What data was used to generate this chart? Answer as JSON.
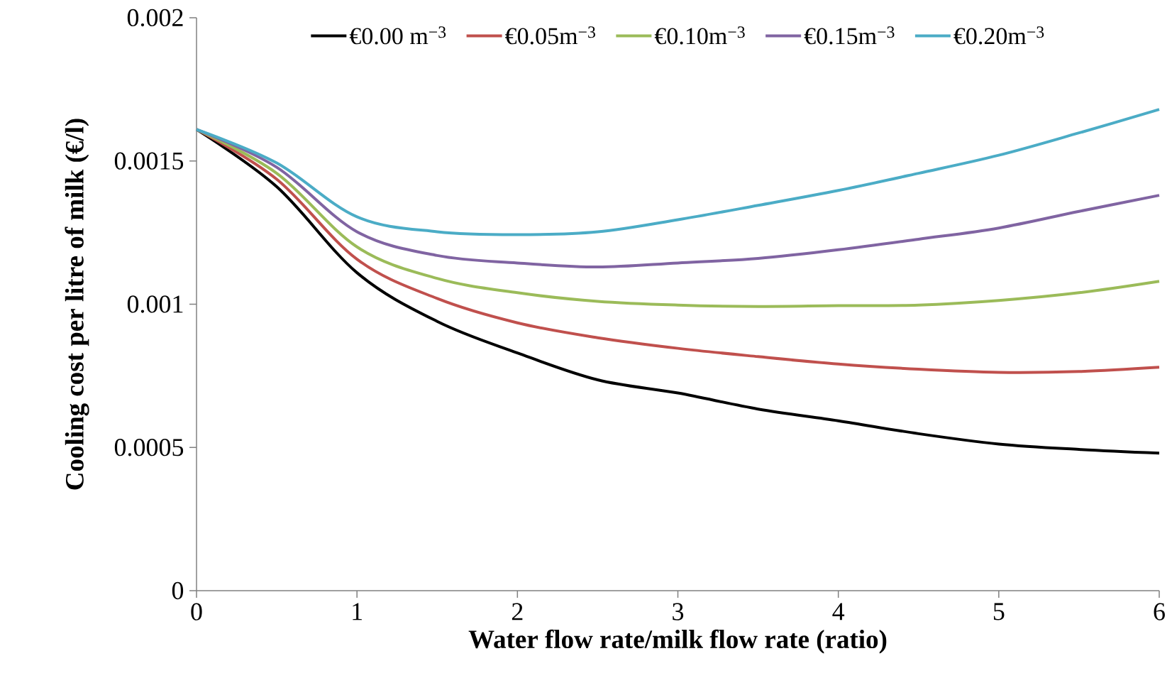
{
  "chart_data": {
    "type": "line",
    "xlabel": "Water flow rate/milk flow rate (ratio)",
    "ylabel": "Cooling cost per litre of milk (€/l)",
    "x": [
      0,
      0.5,
      1,
      1.5,
      2,
      2.5,
      3,
      3.5,
      4,
      4.5,
      5,
      5.5,
      6
    ],
    "series": [
      {
        "name": "€0.00 m$^{−3}$",
        "color": "#000000",
        "values": [
          0.00161,
          0.00141,
          0.00111,
          0.00094,
          0.00083,
          0.000736,
          0.00069,
          0.000634,
          0.000593,
          0.000548,
          0.000512,
          0.000493,
          0.00048
        ]
      },
      {
        "name": "€0.05m$^{−3}$",
        "color": "#c0504d",
        "values": [
          0.00161,
          0.001436,
          0.001157,
          0.00102,
          0.000935,
          0.000883,
          0.000846,
          0.000817,
          0.000791,
          0.000773,
          0.000762,
          0.000765,
          0.00078
        ]
      },
      {
        "name": "€0.10m$^{−3}$",
        "color": "#9bbb59",
        "values": [
          0.00161,
          0.001457,
          0.0012,
          0.00109,
          0.00104,
          0.00101,
          0.000997,
          0.000992,
          0.000995,
          0.000997,
          0.001013,
          0.00104,
          0.00108
        ]
      },
      {
        "name": "€0.15m$^{−3}$",
        "color": "#8064a2",
        "values": [
          0.00161,
          0.001478,
          0.001253,
          0.00117,
          0.001144,
          0.00113,
          0.001144,
          0.00116,
          0.00119,
          0.001227,
          0.001266,
          0.001324,
          0.00138
        ]
      },
      {
        "name": "€0.20m$^{−3}$",
        "color": "#4bacc6",
        "values": [
          0.00161,
          0.001493,
          0.001305,
          0.001253,
          0.001243,
          0.001253,
          0.001295,
          0.001345,
          0.001397,
          0.001457,
          0.00152,
          0.001598,
          0.00168
        ]
      }
    ],
    "xlim": [
      0,
      6
    ],
    "ylim": [
      0,
      0.002
    ],
    "xticks": [
      0,
      1,
      2,
      3,
      4,
      5,
      6
    ],
    "yticks": [
      0,
      0.0005,
      0.001,
      0.0015,
      0.002
    ],
    "grid": false,
    "legend": "top",
    "marker": "none",
    "line_style": "solid"
  }
}
